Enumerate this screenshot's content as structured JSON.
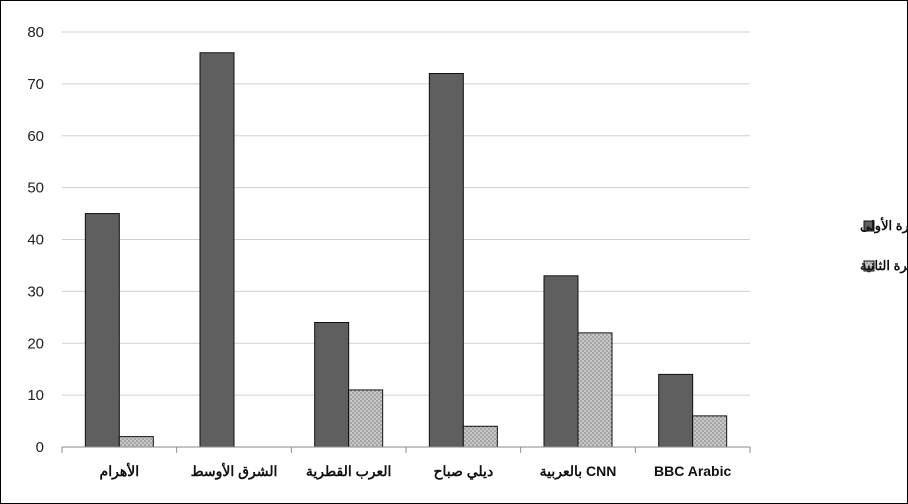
{
  "chart_data": {
    "type": "bar",
    "categories": [
      "الأهرام",
      "الشرق الأوسط",
      "العرب القطرية",
      "ديلي صباح",
      "CNN بالعربية",
      "BBC Arabic"
    ],
    "series": [
      {
        "name": "الفترة الأولى",
        "values": [
          45,
          76,
          24,
          72,
          33,
          14
        ],
        "color": "#5f5f5f"
      },
      {
        "name": "الفترة الثانية",
        "values": [
          2,
          0,
          11,
          4,
          22,
          6
        ],
        "color": "#bdbdbd",
        "pattern": "dotted"
      }
    ],
    "ylim": [
      0,
      80
    ],
    "yticks": [
      0,
      10,
      20,
      30,
      40,
      50,
      60,
      70,
      80
    ],
    "grid": true,
    "legend": "right",
    "title": "",
    "xlabel": "",
    "ylabel": ""
  }
}
